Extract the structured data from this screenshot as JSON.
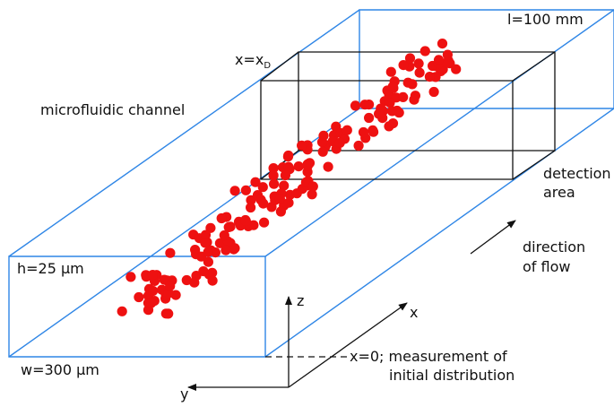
{
  "labels": {
    "channel": "microfluidic channel",
    "length": "l=100 mm",
    "xd_prefix": "x=x",
    "xd_sub": "D",
    "height": "h=25 µm",
    "width": "w=300 µm",
    "detection_line1": "detection",
    "detection_line2": "area",
    "flow_line1": "direction",
    "flow_line2": "of flow",
    "measure_line1": "x=0; measurement of",
    "measure_line2": "initial distribution",
    "axis_x": "x",
    "axis_y": "y",
    "axis_z": "z"
  },
  "colors": {
    "channel": "#2f86e6",
    "detection": "#111111",
    "particle": "#ee1111",
    "axes": "#111111"
  },
  "particles": {
    "count": 180,
    "seed": 7
  }
}
